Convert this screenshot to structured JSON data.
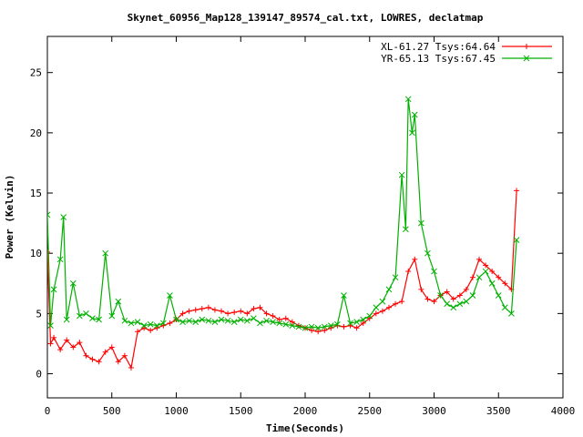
{
  "chart_data": {
    "type": "line",
    "title": "Skynet_60956_Map128_139147_89574_cal.txt, LOWRES, declatmap",
    "xlabel": "Time(Seconds)",
    "ylabel": "Power (Kelvin)",
    "xlim": [
      0,
      4000
    ],
    "ylim": [
      -2,
      28
    ],
    "x_ticks": [
      "0",
      "500",
      "1000",
      "1500",
      "2000",
      "2500",
      "3000",
      "3500",
      "4000"
    ],
    "y_ticks": [
      "0",
      "5",
      "10",
      "15",
      "20",
      "25"
    ],
    "grid": false,
    "legend_position": "top-right",
    "series": [
      {
        "name": "XL-61.27 Tsys:64.64",
        "color": "#ff0000",
        "marker": "plus",
        "x": [
          0,
          25,
          50,
          100,
          150,
          200,
          250,
          300,
          350,
          400,
          450,
          500,
          550,
          600,
          650,
          700,
          750,
          800,
          850,
          900,
          950,
          1000,
          1050,
          1100,
          1150,
          1200,
          1250,
          1300,
          1350,
          1400,
          1450,
          1500,
          1550,
          1600,
          1650,
          1700,
          1750,
          1800,
          1850,
          1900,
          1950,
          2000,
          2050,
          2100,
          2150,
          2200,
          2250,
          2300,
          2350,
          2400,
          2450,
          2500,
          2550,
          2600,
          2650,
          2700,
          2750,
          2800,
          2850,
          2900,
          2950,
          3000,
          3050,
          3100,
          3150,
          3200,
          3250,
          3300,
          3350,
          3400,
          3450,
          3500,
          3550,
          3600,
          3640
        ],
        "y": [
          10.1,
          2.5,
          3.0,
          2.0,
          2.8,
          2.2,
          2.6,
          1.5,
          1.2,
          1.0,
          1.8,
          2.2,
          1.0,
          1.5,
          0.5,
          3.5,
          3.8,
          3.6,
          3.8,
          4.0,
          4.2,
          4.5,
          5.0,
          5.2,
          5.3,
          5.4,
          5.5,
          5.3,
          5.2,
          5.0,
          5.1,
          5.2,
          5.0,
          5.4,
          5.5,
          5.0,
          4.8,
          4.5,
          4.6,
          4.3,
          4.0,
          3.8,
          3.6,
          3.5,
          3.6,
          3.8,
          4.0,
          3.9,
          4.0,
          3.8,
          4.2,
          4.6,
          5.0,
          5.2,
          5.5,
          5.8,
          6.0,
          8.5,
          9.5,
          7.0,
          6.2,
          6.0,
          6.5,
          6.8,
          6.2,
          6.5,
          7.0,
          8.0,
          9.5,
          9.0,
          8.5,
          8.0,
          7.5,
          7.0,
          15.2
        ]
      },
      {
        "name": "YR-65.13 Tsys:67.45",
        "color": "#00b000",
        "marker": "cross",
        "x": [
          0,
          25,
          50,
          100,
          125,
          150,
          200,
          250,
          300,
          350,
          400,
          450,
          500,
          550,
          600,
          650,
          700,
          750,
          800,
          850,
          900,
          950,
          1000,
          1050,
          1100,
          1150,
          1200,
          1250,
          1300,
          1350,
          1400,
          1450,
          1500,
          1550,
          1600,
          1650,
          1700,
          1750,
          1800,
          1850,
          1900,
          1950,
          2000,
          2050,
          2100,
          2150,
          2200,
          2250,
          2300,
          2350,
          2400,
          2450,
          2500,
          2550,
          2600,
          2650,
          2700,
          2750,
          2780,
          2800,
          2830,
          2850,
          2900,
          2950,
          3000,
          3050,
          3100,
          3150,
          3200,
          3250,
          3300,
          3350,
          3400,
          3450,
          3500,
          3550,
          3600,
          3640
        ],
        "y": [
          13.2,
          4.0,
          7.0,
          9.5,
          13.0,
          4.5,
          7.5,
          4.8,
          5.0,
          4.6,
          4.5,
          10.0,
          4.8,
          6.0,
          4.4,
          4.2,
          4.3,
          4.0,
          4.1,
          4.0,
          4.2,
          6.5,
          4.5,
          4.3,
          4.4,
          4.3,
          4.5,
          4.4,
          4.3,
          4.5,
          4.4,
          4.3,
          4.5,
          4.4,
          4.6,
          4.2,
          4.4,
          4.3,
          4.2,
          4.1,
          4.0,
          3.9,
          3.8,
          3.9,
          3.8,
          3.9,
          4.0,
          4.1,
          6.5,
          4.2,
          4.3,
          4.5,
          4.8,
          5.5,
          6.0,
          7.0,
          8.0,
          16.5,
          12.0,
          22.8,
          20.0,
          21.5,
          12.5,
          10.0,
          8.5,
          6.5,
          5.8,
          5.5,
          5.8,
          6.0,
          6.5,
          8.0,
          8.5,
          7.5,
          6.5,
          5.5,
          5.0,
          11.1
        ]
      }
    ]
  }
}
